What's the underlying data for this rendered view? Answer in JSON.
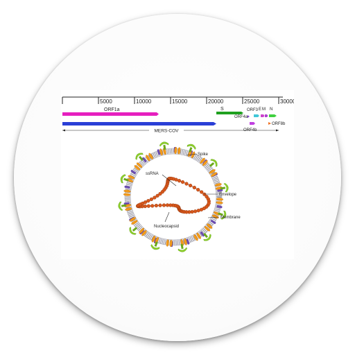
{
  "genome": {
    "ticks": [
      "5000",
      "10000",
      "15000",
      "20000",
      "25000",
      "30000"
    ],
    "genes": {
      "orf1a": "ORF1a",
      "s": "S",
      "orf3": "ORF3",
      "e": "E",
      "m": "M",
      "n": "N",
      "orf4a": "ORF4a",
      "orf4b": "ORF4b",
      "orf8b": "ORF8b"
    },
    "genome_label": "MERS-COV",
    "colors": {
      "orf1a": "#e61fbf",
      "orf1b": "#2a3fd6",
      "s": "#1fa01f",
      "orf3": "#40c8d8",
      "e": "#cc44cc",
      "m": "#b040d0",
      "n": "#40d040",
      "orf4a": "#8040d0",
      "orf4b": "#c040e0",
      "orf8b": "#f07020"
    }
  },
  "virion": {
    "labels": {
      "spike": "Spike",
      "ssrna": "ssRNA",
      "envelope": "Envelope",
      "membrane": "Membrane",
      "nucleocapsid": "Nucleocapsid"
    },
    "colors": {
      "spike": "#8fd22a",
      "envelope_protein": "#f29a1c",
      "membrane_protein": "#6a4bb0",
      "nucleocapsid": "#d8581c",
      "lipid": "#8a8a9a"
    }
  }
}
